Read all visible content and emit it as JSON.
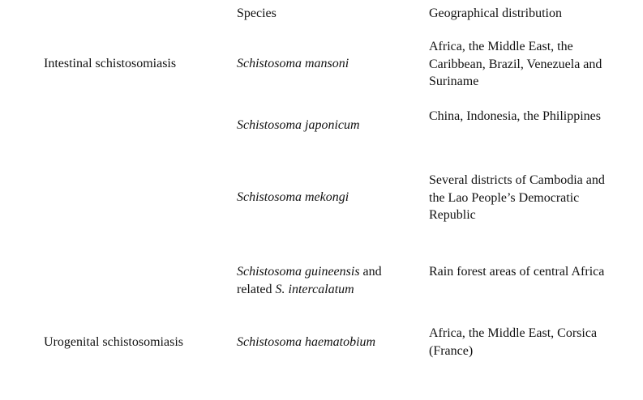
{
  "headers": {
    "species": "Species",
    "distribution": "Geographical distribution"
  },
  "rows": [
    {
      "disease": "Intestinal schistosomiasis",
      "species_italic": "Schistosoma mansoni",
      "species_rest": "",
      "species_italic2": "",
      "distribution": "Africa, the Middle East, the Caribbean, Brazil, Venezuela and Suriname"
    },
    {
      "disease": "",
      "species_italic": "Schistosoma japonicum",
      "species_rest": "",
      "species_italic2": "",
      "distribution": "China, Indonesia, the Philippines"
    },
    {
      "disease": "",
      "species_italic": "Schistosoma mekongi",
      "species_rest": "",
      "species_italic2": "",
      "distribution": "Several districts of Cambodia and the Lao People’s Democratic Republic"
    },
    {
      "disease": "",
      "species_italic": "Schistosoma guineensis",
      "species_rest": " and related ",
      "species_italic2": "S. intercalatum",
      "distribution": "Rain forest areas of central Africa"
    },
    {
      "disease": "Urogenital schistosomiasis",
      "species_italic": "Schistosoma haematobium",
      "species_rest": "",
      "species_italic2": "",
      "distribution": "Africa, the Middle East, Corsica (France)"
    }
  ]
}
